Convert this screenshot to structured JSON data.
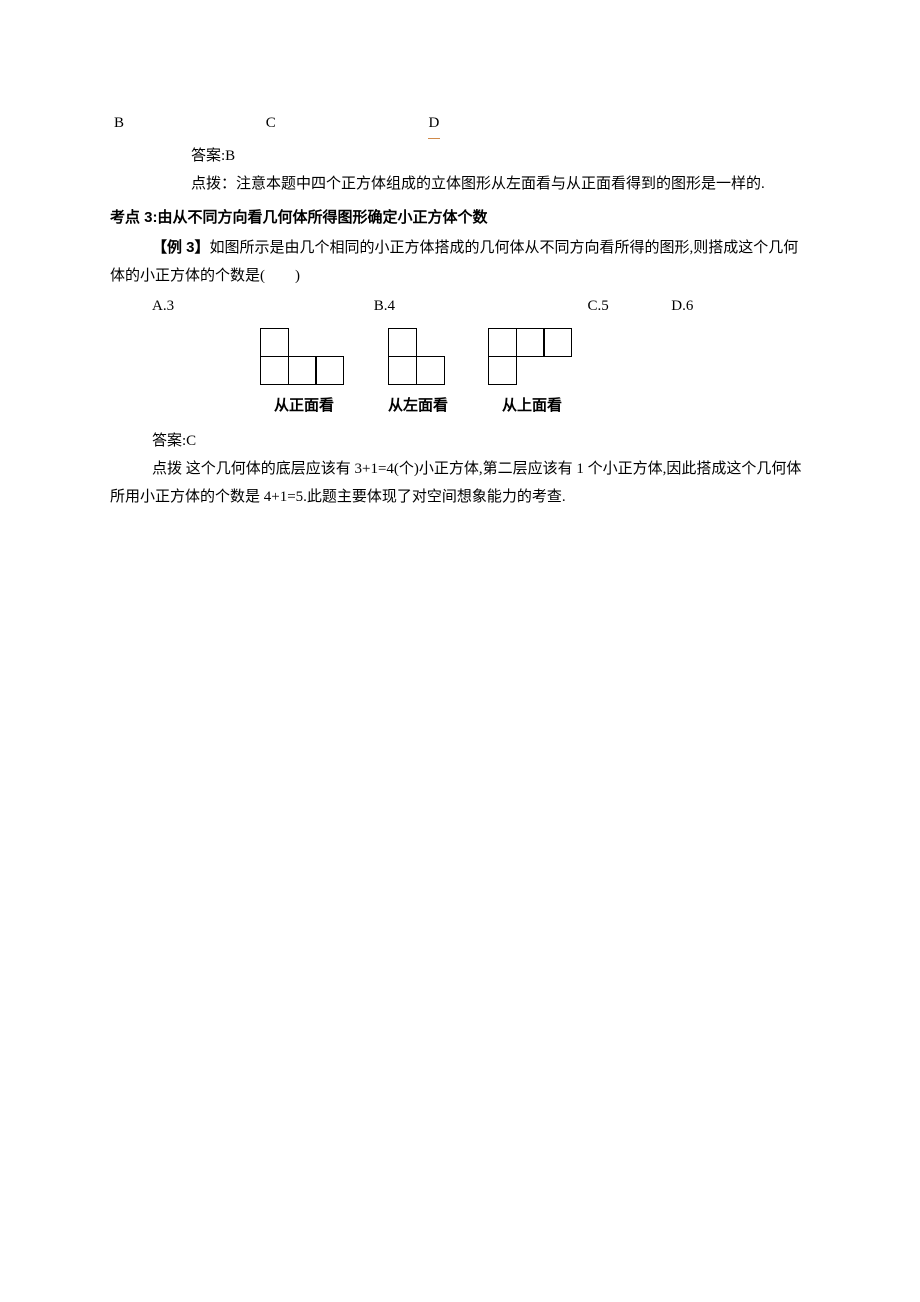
{
  "row_bcd": {
    "b": "B",
    "c": "C",
    "d": "D"
  },
  "ans_b": "答案:B",
  "hint_b": "点拨：注意本题中四个正方体组成的立体图形从左面看与从正面看得到的图形是一样的.",
  "kp3_heading": "考点 3:由从不同方向看几何体所得图形确定小正方体个数",
  "ex3": {
    "label": "【例 3】",
    "text": "如图所示是由几个相同的小正方体搭成的几何体从不同方向看所得的图形,则搭成这个几何体的小正方体的个数是(　　)",
    "opts": {
      "a": "A.3",
      "b": "B.4",
      "c": "C.5",
      "d": "D.6"
    }
  },
  "figs": {
    "front": "从正面看",
    "left": "从左面看",
    "top": "从上面看"
  },
  "ans_c": "答案:C",
  "hint_c": "点拨 这个几何体的底层应该有 3+1=4(个)小正方体,第二层应该有 1 个小正方体,因此搭成这个几何体所用小正方体的个数是 4+1=5.此题主要体现了对空间想象能力的考查."
}
